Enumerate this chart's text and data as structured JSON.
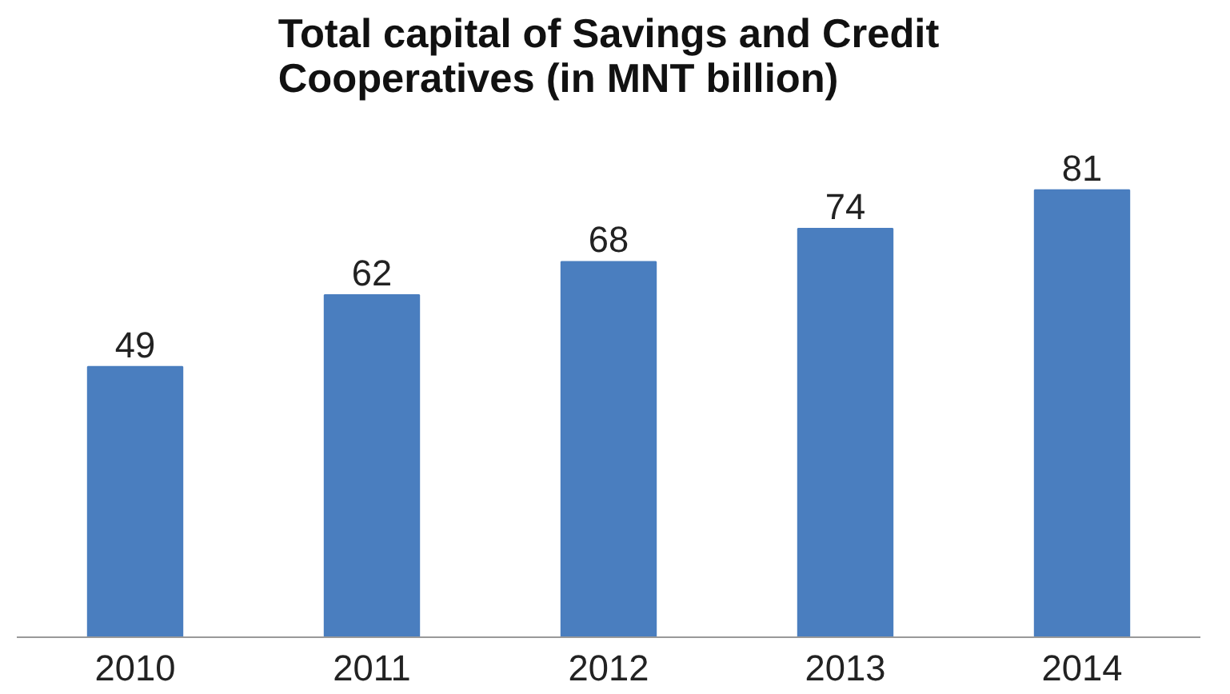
{
  "chart_data": {
    "type": "bar",
    "title": "Total capital of Savings and Credit Cooperatives (in MNT billion)",
    "categories": [
      "2010",
      "2011",
      "2012",
      "2013",
      "2014"
    ],
    "values": [
      49,
      62,
      68,
      74,
      81
    ],
    "color": "#4a7ebf",
    "data_labels": true
  }
}
